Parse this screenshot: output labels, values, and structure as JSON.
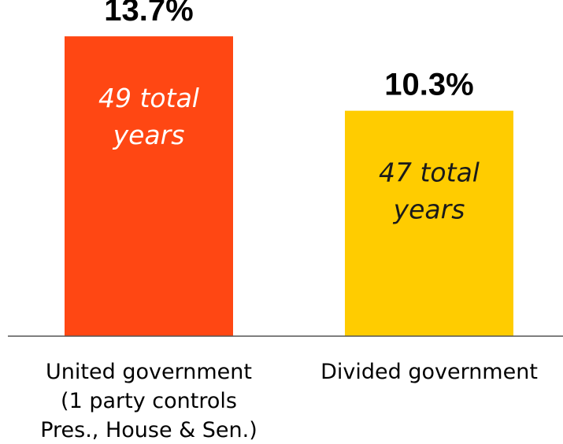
{
  "chart_data": {
    "type": "bar",
    "title": "",
    "xlabel": "",
    "ylabel": "",
    "ylim": [
      0,
      15
    ],
    "grid": false,
    "categories": [
      [
        "United government",
        "(1 party controls",
        "Pres., House & Sen.)"
      ],
      [
        "Divided government"
      ]
    ],
    "values": [
      13.7,
      10.3
    ],
    "value_labels": [
      "13.7%",
      "10.3%"
    ],
    "bar_annotations": [
      [
        "49 total",
        "years"
      ],
      [
        "47 total",
        "years"
      ]
    ],
    "colors": [
      "#ff4713",
      "#ffcc00"
    ],
    "annotation_text_colors": [
      "#ffffff",
      "#1a1a1a"
    ]
  }
}
